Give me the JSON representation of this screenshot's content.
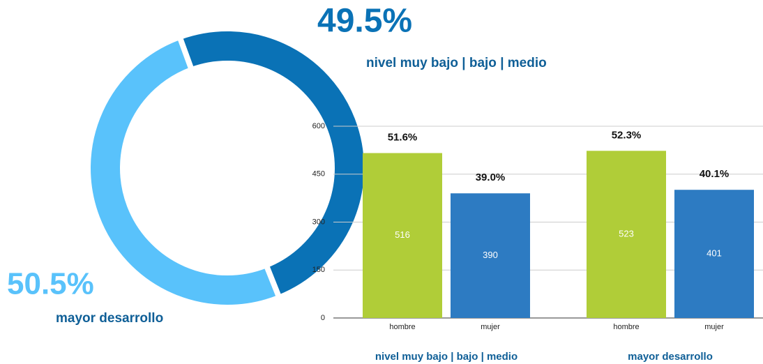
{
  "chart_data": [
    {
      "type": "donut",
      "categories": [
        "nivel muy bajo | bajo | medio",
        "mayor desarrollo"
      ],
      "values": [
        49.5,
        50.5
      ],
      "value_labels": [
        "49.5%",
        "50.5%"
      ],
      "colors": [
        "#0a72b6",
        "#59c2fb"
      ]
    },
    {
      "type": "bar",
      "categories": [
        "hombre",
        "mujer",
        "hombre",
        "mujer"
      ],
      "groups": [
        "nivel muy bajo | bajo | medio",
        "mayor desarrollo"
      ],
      "values": [
        516,
        390,
        523,
        401
      ],
      "annotations": [
        "51.6%",
        "39.0%",
        "52.3%",
        "40.1%"
      ],
      "colors": [
        "#b0cd38",
        "#2d7bc2",
        "#b0cd38",
        "#2d7bc2"
      ],
      "ylim": [
        0,
        600
      ],
      "yticks": [
        0,
        150,
        300,
        450,
        600
      ],
      "grid": true
    }
  ]
}
